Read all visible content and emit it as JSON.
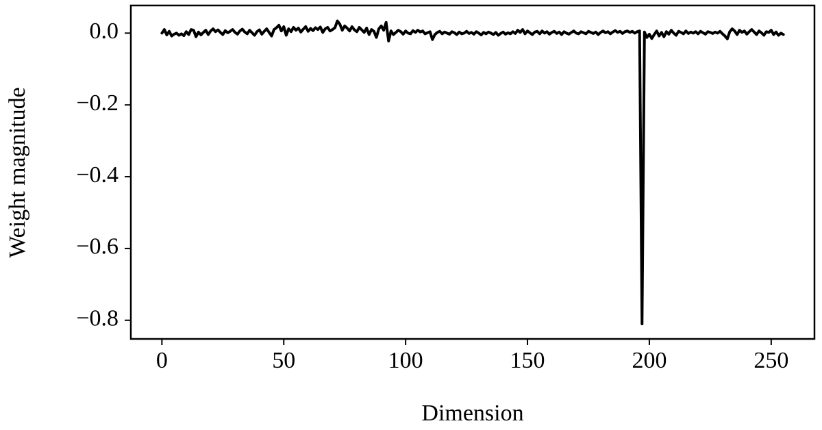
{
  "chart_data": {
    "type": "line",
    "x_label": "Dimension",
    "y_label": "Weight magnitude",
    "color": "#000000",
    "grid": false,
    "xlim": [
      -12.75,
      267.75
    ],
    "ylim": [
      -0.852,
      0.077
    ],
    "xticks": [
      0,
      50,
      100,
      150,
      200,
      250
    ],
    "yticks": [
      {
        "value": -0.8,
        "label": "−0.8"
      },
      {
        "value": -0.6,
        "label": "−0.6"
      },
      {
        "value": -0.4,
        "label": "−0.4"
      },
      {
        "value": -0.2,
        "label": "−0.2"
      },
      {
        "value": 0,
        "label": "0.0"
      }
    ],
    "x": [
      0,
      1,
      2,
      3,
      4,
      5,
      6,
      7,
      8,
      9,
      10,
      11,
      12,
      13,
      14,
      15,
      16,
      17,
      18,
      19,
      20,
      21,
      22,
      23,
      24,
      25,
      26,
      27,
      28,
      29,
      30,
      31,
      32,
      33,
      34,
      35,
      36,
      37,
      38,
      39,
      40,
      41,
      42,
      43,
      44,
      45,
      46,
      47,
      48,
      49,
      50,
      51,
      52,
      53,
      54,
      55,
      56,
      57,
      58,
      59,
      60,
      61,
      62,
      63,
      64,
      65,
      66,
      67,
      68,
      69,
      70,
      71,
      72,
      73,
      74,
      75,
      76,
      77,
      78,
      79,
      80,
      81,
      82,
      83,
      84,
      85,
      86,
      87,
      88,
      89,
      90,
      91,
      92,
      93,
      94,
      95,
      96,
      97,
      98,
      99,
      100,
      101,
      102,
      103,
      104,
      105,
      106,
      107,
      108,
      109,
      110,
      111,
      112,
      113,
      114,
      115,
      116,
      117,
      118,
      119,
      120,
      121,
      122,
      123,
      124,
      125,
      126,
      127,
      128,
      129,
      130,
      131,
      132,
      133,
      134,
      135,
      136,
      137,
      138,
      139,
      140,
      141,
      142,
      143,
      144,
      145,
      146,
      147,
      148,
      149,
      150,
      151,
      152,
      153,
      154,
      155,
      156,
      157,
      158,
      159,
      160,
      161,
      162,
      163,
      164,
      165,
      166,
      167,
      168,
      169,
      170,
      171,
      172,
      173,
      174,
      175,
      176,
      177,
      178,
      179,
      180,
      181,
      182,
      183,
      184,
      185,
      186,
      187,
      188,
      189,
      190,
      191,
      192,
      193,
      194,
      195,
      196,
      197,
      198,
      199,
      200,
      201,
      202,
      203,
      204,
      205,
      206,
      207,
      208,
      209,
      210,
      211,
      212,
      213,
      214,
      215,
      216,
      217,
      218,
      219,
      220,
      221,
      222,
      223,
      224,
      225,
      226,
      227,
      228,
      229,
      230,
      231,
      232,
      233,
      234,
      235,
      236,
      237,
      238,
      239,
      240,
      241,
      242,
      243,
      244,
      245,
      246,
      247,
      248,
      249,
      250,
      251,
      252,
      253,
      254,
      255
    ],
    "values": [
      0.0,
      0.01,
      -0.005,
      0.005,
      -0.008,
      -0.003,
      0.0,
      -0.006,
      -0.002,
      -0.007,
      0.004,
      -0.004,
      0.01,
      0.008,
      -0.01,
      0.003,
      -0.005,
      0.002,
      0.008,
      -0.004,
      0.006,
      0.012,
      0.004,
      0.009,
      0.002,
      -0.004,
      0.007,
      0.001,
      0.005,
      0.01,
      0.002,
      -0.003,
      0.006,
      0.011,
      0.003,
      -0.002,
      0.008,
      0.001,
      -0.006,
      0.004,
      0.009,
      -0.003,
      0.005,
      0.012,
      0.002,
      -0.008,
      0.01,
      0.015,
      0.022,
      0.006,
      0.018,
      -0.006,
      0.012,
      0.004,
      0.016,
      0.008,
      0.014,
      0.003,
      0.011,
      0.018,
      0.005,
      0.013,
      0.007,
      0.015,
      0.01,
      0.017,
      0.002,
      0.012,
      0.016,
      0.006,
      0.01,
      0.015,
      0.034,
      0.025,
      0.008,
      0.02,
      0.014,
      0.006,
      0.018,
      0.009,
      0.004,
      0.016,
      0.009,
      0.002,
      0.014,
      -0.004,
      0.01,
      0.005,
      -0.012,
      0.012,
      0.02,
      0.008,
      0.03,
      -0.022,
      0.006,
      -0.004,
      0.002,
      0.008,
      0.004,
      -0.003,
      0.006,
      0.0,
      -0.002,
      0.007,
      0.002,
      0.008,
      0.003,
      0.006,
      -0.002,
      0.001,
      0.004,
      -0.018,
      -0.004,
      0.002,
      0.005,
      -0.002,
      0.003,
      0.0,
      -0.003,
      0.004,
      0.001,
      -0.004,
      0.003,
      -0.002,
      0.0,
      0.005,
      -0.001,
      0.002,
      -0.003,
      0.004,
      0.0,
      -0.005,
      0.002,
      -0.002,
      0.003,
      0.0,
      -0.004,
      0.002,
      -0.006,
      -0.001,
      0.003,
      -0.003,
      0.001,
      -0.002,
      0.004,
      -0.001,
      0.008,
      0.002,
      0.01,
      -0.002,
      0.006,
      0.001,
      -0.004,
      0.003,
      0.005,
      -0.002,
      0.006,
      0.0,
      0.004,
      -0.003,
      0.002,
      0.005,
      -0.001,
      0.003,
      -0.004,
      0.004,
      0.0,
      -0.003,
      0.002,
      0.006,
      0.0,
      -0.002,
      0.004,
      0.001,
      -0.002,
      0.005,
      0.002,
      -0.001,
      0.003,
      -0.004,
      0.002,
      0.006,
      0.001,
      0.004,
      -0.002,
      0.003,
      0.007,
      0.002,
      0.005,
      -0.001,
      0.004,
      0.006,
      0.002,
      0.005,
      0.0,
      0.004,
      0.006,
      -0.81,
      0.003,
      -0.012,
      -0.003,
      -0.015,
      -0.004,
      0.006,
      -0.008,
      0.002,
      -0.01,
      0.004,
      -0.003,
      0.008,
      0.0,
      -0.006,
      0.005,
      0.002,
      -0.002,
      0.006,
      -0.001,
      0.003,
      0.0,
      0.004,
      -0.002,
      0.005,
      0.001,
      -0.003,
      0.004,
      0.002,
      -0.001,
      0.003,
      0.0,
      0.005,
      -0.002,
      -0.008,
      -0.016,
      0.004,
      0.012,
      0.006,
      -0.004,
      0.008,
      0.002,
      0.006,
      -0.003,
      0.004,
      0.01,
      0.003,
      -0.004,
      0.006,
      0.001,
      -0.006,
      0.004,
      0.002,
      0.008,
      -0.004,
      0.003,
      -0.006,
      0.0,
      -0.004
    ]
  }
}
